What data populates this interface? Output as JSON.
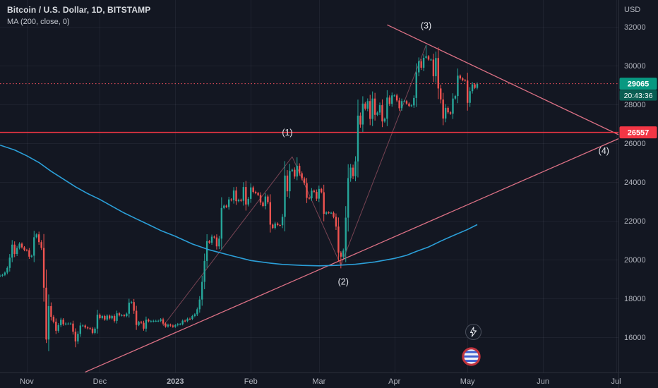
{
  "header": {
    "title": "Bitcoin / U.S. Dollar, 1D, BITSTAMP",
    "indicator": "MA (200, close, 0)"
  },
  "axis": {
    "currency_label": "USD",
    "price_ticks": [
      32000,
      30000,
      28000,
      26000,
      24000,
      22000,
      20000,
      18000,
      16000
    ],
    "time_ticks": [
      {
        "label": "Nov",
        "i": 11,
        "major": false
      },
      {
        "label": "Dec",
        "i": 41,
        "major": false
      },
      {
        "label": "2023",
        "i": 72,
        "major": true
      },
      {
        "label": "Feb",
        "i": 103,
        "major": false
      },
      {
        "label": "Mar",
        "i": 131,
        "major": false
      },
      {
        "label": "Apr",
        "i": 162,
        "major": false
      },
      {
        "label": "May",
        "i": 192,
        "major": false
      },
      {
        "label": "Jun",
        "i": 223,
        "major": false
      },
      {
        "label": "Jul",
        "i": 253,
        "major": false
      }
    ]
  },
  "buttons": {
    "lightning_icon": "lightning-bolt-icon",
    "logo_icon": "brand-roundel-icon"
  },
  "chart_data": {
    "type": "candlestick",
    "title": "Bitcoin / U.S. Dollar",
    "interval": "1D",
    "exchange": "BITSTAMP",
    "bg_color": "#131722",
    "grid_color": "rgba(240,243,250,0.055)",
    "up_color": "#26a69a",
    "down_color": "#ef5350",
    "ylim": [
      14180,
      33380
    ],
    "xlim_index": [
      0,
      254
    ],
    "first_open": 19160,
    "closes": [
      19170,
      19210,
      19330,
      19570,
      20100,
      20770,
      20290,
      20600,
      20820,
      20630,
      20490,
      20480,
      20150,
      20200,
      21150,
      21300,
      20900,
      20600,
      18550,
      15880,
      17600,
      17050,
      16800,
      16330,
      16620,
      16900,
      16670,
      16700,
      16700,
      16700,
      16280,
      15780,
      16170,
      16600,
      16600,
      16500,
      16460,
      16440,
      16220,
      16440,
      17160,
      16980,
      17090,
      16910,
      17110,
      16970,
      17090,
      16840,
      17230,
      17130,
      17130,
      17090,
      17210,
      17780,
      17810,
      17360,
      16630,
      16780,
      16740,
      16440,
      16900,
      16820,
      16820,
      16840,
      16840,
      16840,
      16920,
      16700,
      16550,
      16640,
      16600,
      16540,
      16620,
      16670,
      16670,
      16850,
      16830,
      16950,
      16940,
      17090,
      17180,
      17440,
      17940,
      18850,
      19930,
      20950,
      20870,
      21180,
      21140,
      20680,
      21080,
      22660,
      22780,
      22710,
      23100,
      23060,
      23560,
      23010,
      23080,
      23030,
      23740,
      22840,
      23130,
      23720,
      23490,
      23430,
      23330,
      22940,
      22760,
      23250,
      22960,
      21800,
      21630,
      21860,
      21780,
      21770,
      22200,
      24330,
      23520,
      24570,
      24630,
      24280,
      24830,
      24450,
      24180,
      23940,
      23180,
      23160,
      23550,
      23490,
      23140,
      23640,
      23470,
      22360,
      22430,
      22410,
      22410,
      22200,
      21700,
      20360,
      20150,
      20460,
      22160,
      24200,
      24740,
      24300,
      25060,
      27420,
      26960,
      28040,
      27780,
      28170,
      27250,
      28300,
      27460,
      27580,
      27960,
      27120,
      27260,
      28350,
      28030,
      28460,
      28460,
      28200,
      27800,
      28170,
      28170,
      28040,
      27920,
      27950,
      28330,
      29650,
      30220,
      29890,
      30400,
      30480,
      30310,
      30310,
      29450,
      30390,
      28820,
      28250,
      27270,
      27820,
      27590,
      27520,
      28300,
      28430,
      29480,
      29340,
      29250,
      29230,
      28080,
      28680,
      29030,
      28850,
      29065
    ],
    "wick_overrides": {
      "19": {
        "low": 15700
      },
      "31": {
        "low": 15480
      },
      "122": {
        "high": 25270
      },
      "140": {
        "low": 19550
      },
      "175": {
        "high": 31050
      }
    },
    "ma200": {
      "period": 200,
      "source": "close",
      "offset": 0,
      "color": "#2b9fd8",
      "points": [
        [
          0,
          25900
        ],
        [
          6,
          25650
        ],
        [
          11,
          25350
        ],
        [
          16,
          25000
        ],
        [
          21,
          24550
        ],
        [
          26,
          24150
        ],
        [
          31,
          23750
        ],
        [
          36,
          23400
        ],
        [
          41,
          23100
        ],
        [
          46,
          22750
        ],
        [
          51,
          22400
        ],
        [
          56,
          22100
        ],
        [
          61,
          21800
        ],
        [
          66,
          21500
        ],
        [
          72,
          21200
        ],
        [
          79,
          20800
        ],
        [
          86,
          20500
        ],
        [
          95,
          20200
        ],
        [
          103,
          19950
        ],
        [
          110,
          19830
        ],
        [
          116,
          19750
        ],
        [
          124,
          19700
        ],
        [
          131,
          19680
        ],
        [
          138,
          19700
        ],
        [
          146,
          19760
        ],
        [
          154,
          19880
        ],
        [
          162,
          20060
        ],
        [
          167,
          20220
        ],
        [
          171,
          20420
        ],
        [
          176,
          20650
        ],
        [
          181,
          20950
        ],
        [
          186,
          21230
        ],
        [
          192,
          21550
        ],
        [
          196,
          21800
        ]
      ]
    },
    "trendlines": [
      {
        "name": "ascending-support-trendline",
        "from": [
          35,
          14200
        ],
        "to": [
          258,
          26450
        ],
        "color": "#f17a8f",
        "width": 1.3
      },
      {
        "name": "descending-resistance-trendline",
        "from": [
          159,
          32100
        ],
        "to": [
          258,
          26200
        ],
        "color": "#f17a8f",
        "width": 1.3
      }
    ],
    "wave_line_color": "#f17a8f",
    "wave_lines": [
      {
        "from": [
          67,
          16580
        ],
        "to": [
          120,
          25300
        ]
      },
      {
        "from": [
          120,
          25300
        ],
        "to": [
          140,
          19700
        ]
      },
      {
        "from": [
          140,
          19700
        ],
        "to": [
          175,
          31050
        ]
      }
    ],
    "wave_labels": [
      {
        "text": "(1)",
        "i": 118,
        "price": 26550
      },
      {
        "text": "(2)",
        "i": 141,
        "price": 18850
      },
      {
        "text": "(3)",
        "i": 175,
        "price": 32050
      },
      {
        "text": "(4)",
        "i": 248,
        "price": 25600
      }
    ],
    "price_lines": [
      {
        "price": 29065,
        "color": "#f7525f",
        "dash": "1.5 3",
        "width": 1,
        "over_candles": true,
        "badge": {
          "label": "29065",
          "bg": "#089981",
          "text_color": "#ffffff",
          "countdown": "20:43:36",
          "countdown_bg": "#0a5e53"
        }
      },
      {
        "price": 26557,
        "color": "#f23645",
        "dash": "",
        "width": 1.5,
        "over_candles": false,
        "badge": {
          "label": "26557",
          "bg": "#f23645",
          "text_color": "#ffffff"
        }
      }
    ]
  }
}
